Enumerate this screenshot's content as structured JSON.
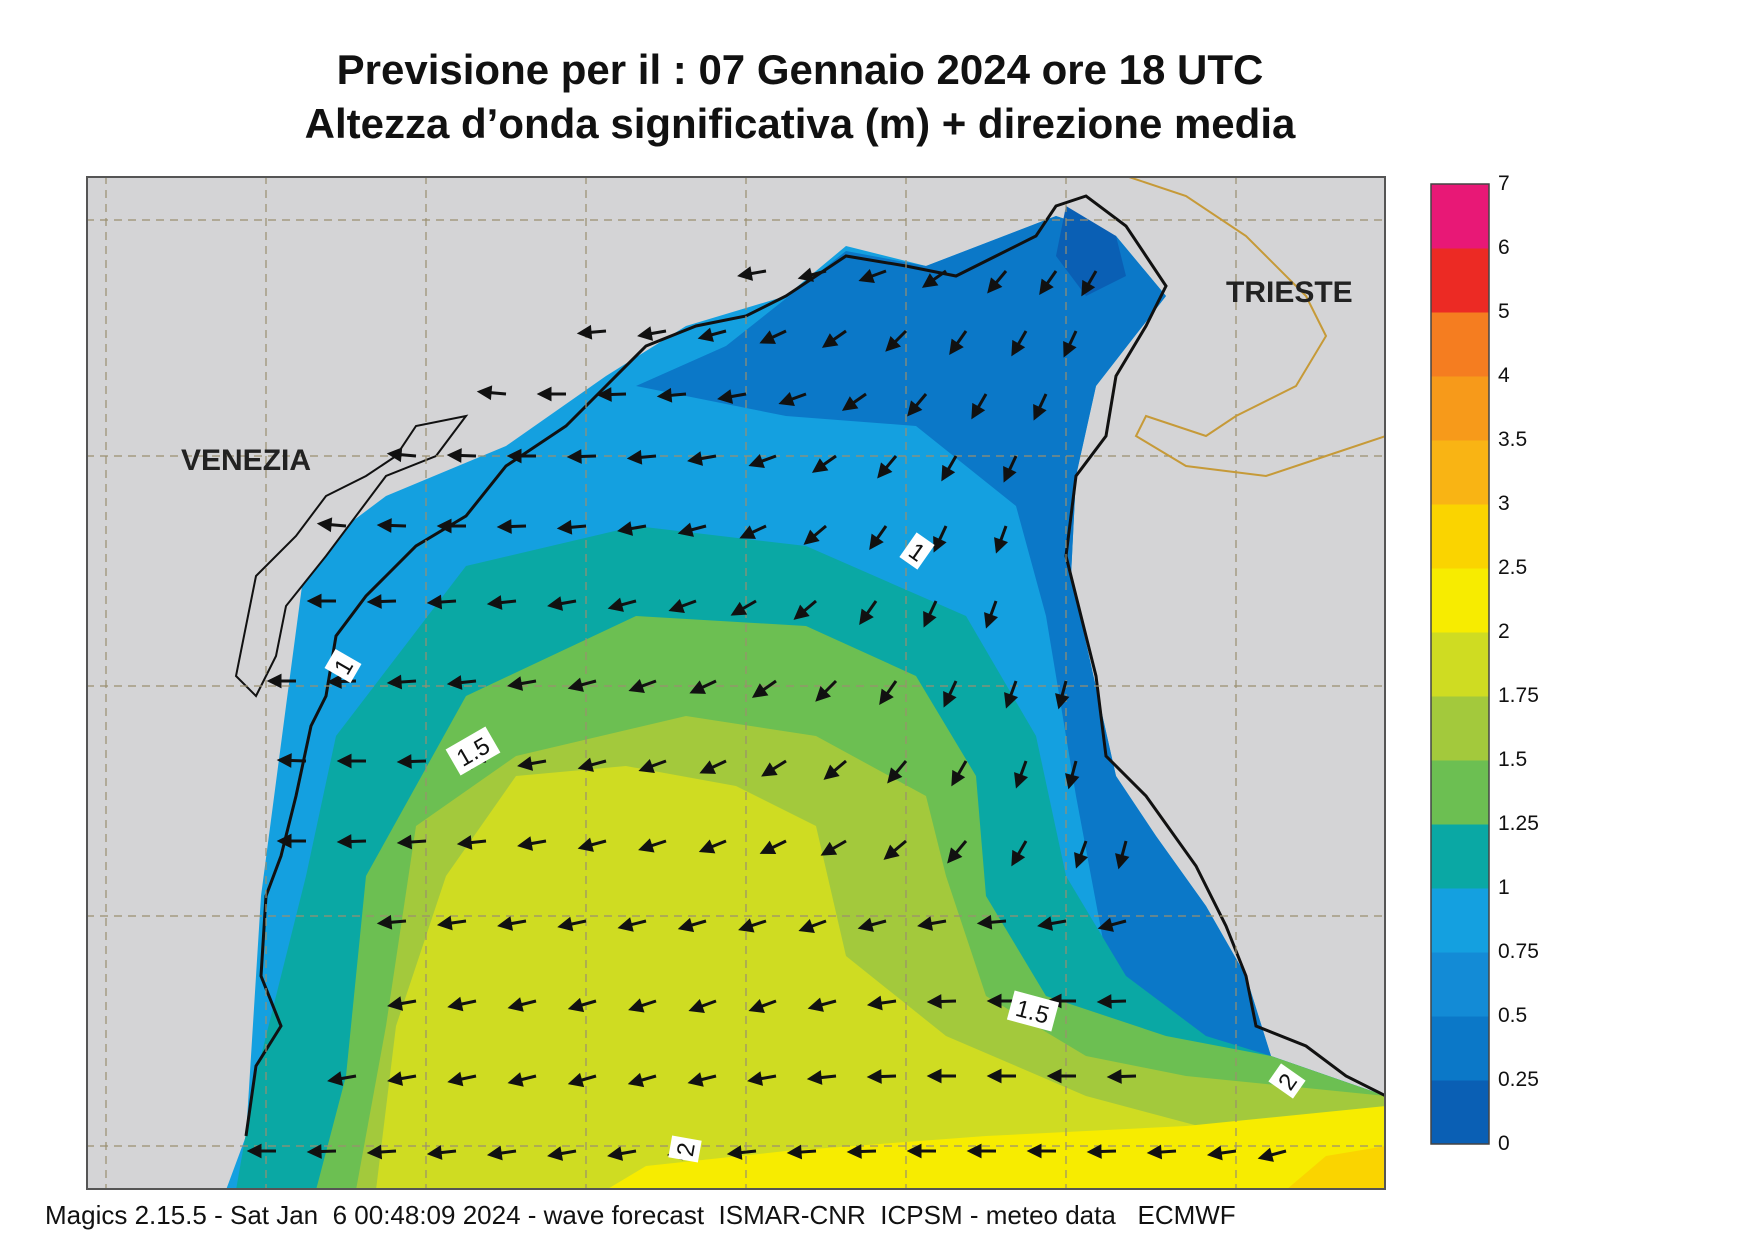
{
  "title": {
    "line1": "Previsione per il  :  07  Gennaio  2024   ore 18 UTC",
    "line2": "Altezza d’onda significativa (m) + direzione media"
  },
  "map": {
    "places": [
      "VENEZIA",
      "TRIESTE"
    ],
    "contour_labels": [
      "1",
      "1",
      "1.5",
      "1.5",
      "2",
      "2"
    ],
    "direction": "arrows mostly pointing west / south-west"
  },
  "legend": {
    "levels": [
      "0",
      "0.25",
      "0.5",
      "0.75",
      "1",
      "1.25",
      "1.5",
      "1.75",
      "2",
      "2.5",
      "3",
      "3.5",
      "4",
      "5",
      "6",
      "7"
    ],
    "colors": [
      "#0a5fb4",
      "#0b78c8",
      "#138bd6",
      "#14a0e0",
      "#0aa8a4",
      "#6cbf52",
      "#a3c93c",
      "#cfdc22",
      "#f7ec00",
      "#fad400",
      "#f9b414",
      "#f79a1a",
      "#f57d20",
      "#ec2a24",
      "#e81876"
    ]
  },
  "colors": {
    "land": "#d4d4d6",
    "grid": "#9a8f6f",
    "border": "#c69a38"
  },
  "footer": "Magics 2.15.5 - Sat Jan  6 00:48:09 2024 - wave forecast  ISMAR-CNR  ICPSM - meteo data   ECMWF"
}
